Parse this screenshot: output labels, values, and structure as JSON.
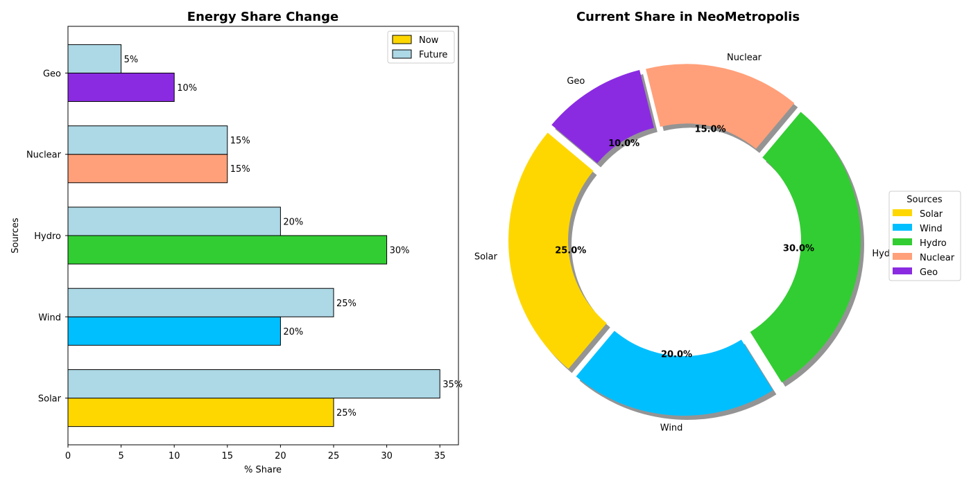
{
  "chart_data": [
    {
      "type": "bar",
      "orientation": "horizontal",
      "title": "Energy Share Change",
      "xlabel": "% Share",
      "ylabel": "Sources",
      "categories": [
        "Solar",
        "Wind",
        "Hydro",
        "Nuclear",
        "Geo"
      ],
      "xlim": [
        0,
        36.75
      ],
      "xticks": [
        0,
        5,
        10,
        15,
        20,
        25,
        30,
        35
      ],
      "series": [
        {
          "name": "Now",
          "values": [
            25,
            20,
            30,
            15,
            10
          ],
          "colors": [
            "#FFD700",
            "#00BFFF",
            "#32CD32",
            "#FFA07A",
            "#8A2BE2"
          ],
          "labels": [
            "25%",
            "20%",
            "30%",
            "15%",
            "10%"
          ]
        },
        {
          "name": "Future",
          "values": [
            35,
            25,
            20,
            15,
            5
          ],
          "color": "#ADD8E6",
          "labels": [
            "35%",
            "25%",
            "20%",
            "15%",
            "5%"
          ]
        }
      ],
      "legend": {
        "position": "top-right",
        "entries": [
          {
            "label": "Now",
            "color": "#FFD700"
          },
          {
            "label": "Future",
            "color": "#ADD8E6"
          }
        ]
      },
      "grid": false
    },
    {
      "type": "pie",
      "donut": true,
      "title": "Current Share in NeoMetropolis",
      "labels": [
        "Solar",
        "Wind",
        "Hydro",
        "Nuclear",
        "Geo"
      ],
      "values": [
        25,
        20,
        30,
        15,
        10
      ],
      "percent_labels": [
        "25.0%",
        "20.0%",
        "30.0%",
        "15.0%",
        "10.0%"
      ],
      "colors": [
        "#FFD700",
        "#00BFFF",
        "#32CD32",
        "#FFA07A",
        "#8A2BE2"
      ],
      "legend": {
        "title": "Sources",
        "position": "center-right"
      }
    }
  ]
}
